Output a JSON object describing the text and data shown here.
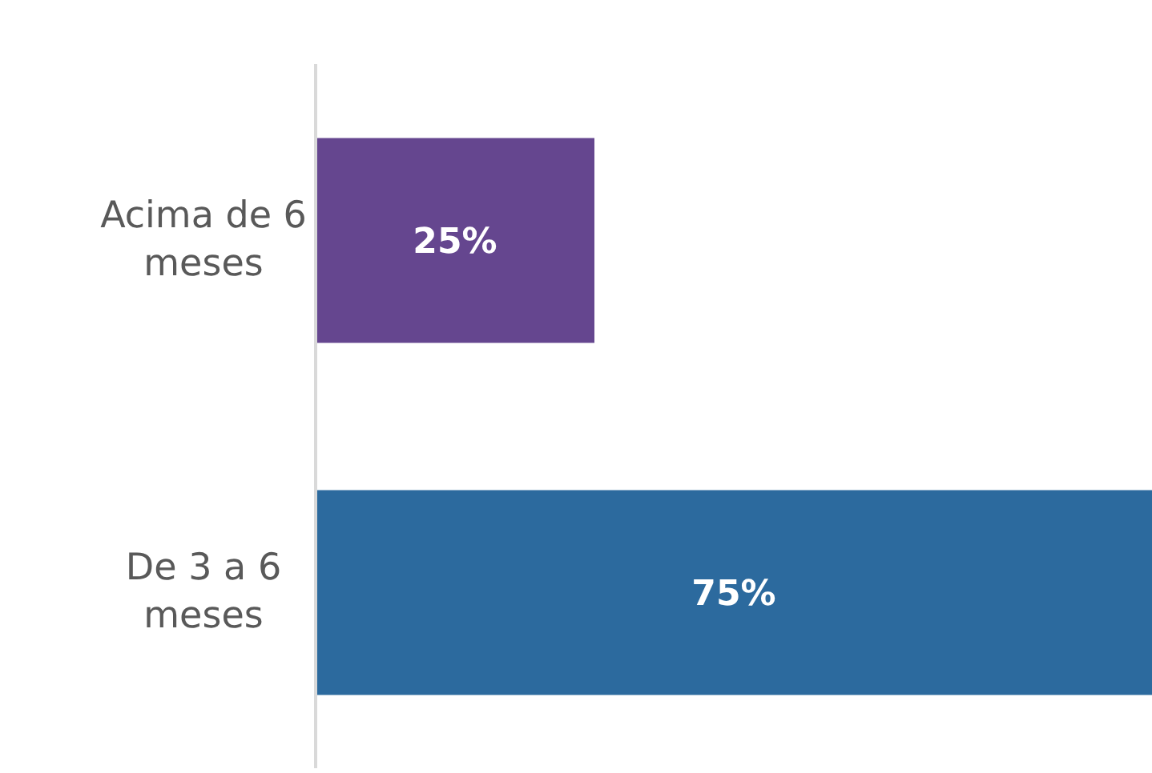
{
  "chart_data": {
    "type": "bar",
    "orientation": "horizontal",
    "categories": [
      "Acima de 6 meses",
      "De 3 a 6 meses"
    ],
    "values": [
      25,
      75
    ],
    "colors": [
      "#65468f",
      "#2c6a9e"
    ],
    "value_labels": [
      "25%",
      "75%"
    ]
  }
}
